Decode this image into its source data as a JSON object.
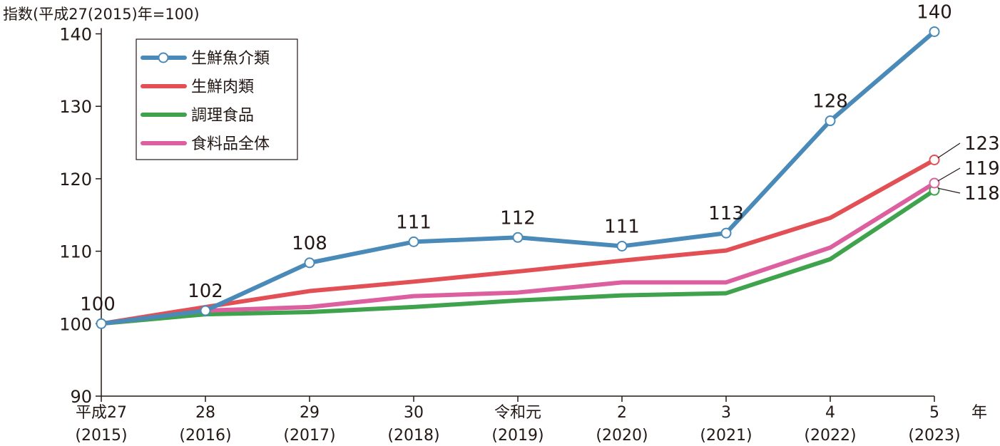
{
  "chart_data": {
    "type": "line",
    "ylabel": "指数(平成27(2015)年=100)",
    "xlabel_unit": "年",
    "ylim": [
      90,
      140
    ],
    "yticks": [
      90,
      100,
      110,
      120,
      130,
      140
    ],
    "categories": [
      {
        "top": "平成27",
        "bottom": "(2015)"
      },
      {
        "top": "28",
        "bottom": "(2016)"
      },
      {
        "top": "29",
        "bottom": "(2017)"
      },
      {
        "top": "30",
        "bottom": "(2018)"
      },
      {
        "top": "令和元",
        "bottom": "(2019)"
      },
      {
        "top": "2",
        "bottom": "(2020)"
      },
      {
        "top": "3",
        "bottom": "(2021)"
      },
      {
        "top": "4",
        "bottom": "(2022)"
      },
      {
        "top": "5",
        "bottom": "(2023)"
      }
    ],
    "series": [
      {
        "name": "生鮮魚介類",
        "color": "#4a8ab8",
        "marker": "circle-all",
        "values": [
          100,
          101.8,
          108.4,
          111.3,
          111.9,
          110.7,
          112.5,
          128.0,
          140.3
        ],
        "labels": [
          "100",
          "102",
          "108",
          "111",
          "112",
          "111",
          "113",
          "128",
          "140"
        ]
      },
      {
        "name": "生鮮肉類",
        "color": "#e25056",
        "marker": "circle-last",
        "values": [
          100,
          102.3,
          104.5,
          105.8,
          107.2,
          108.7,
          110.1,
          114.6,
          122.6
        ],
        "labels": [
          "",
          "",
          "",
          "",
          "",
          "",
          "",
          "",
          "123"
        ]
      },
      {
        "name": "調理食品",
        "color": "#3fa34d",
        "marker": "circle-last",
        "values": [
          100,
          101.3,
          101.6,
          102.3,
          103.2,
          103.9,
          104.2,
          108.9,
          118.4
        ],
        "labels": [
          "",
          "",
          "",
          "",
          "",
          "",
          "",
          "",
          "118"
        ]
      },
      {
        "name": "食料品全体",
        "color": "#dc609f",
        "marker": "circle-last",
        "values": [
          100,
          101.8,
          102.3,
          103.8,
          104.3,
          105.7,
          105.7,
          110.5,
          119.4
        ],
        "labels": [
          "",
          "",
          "",
          "",
          "",
          "",
          "",
          "",
          "119"
        ]
      }
    ],
    "legend_position": "top-left",
    "grid": false
  }
}
